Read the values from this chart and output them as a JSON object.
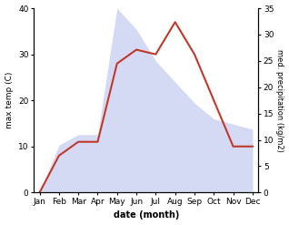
{
  "months": [
    "Jan",
    "Feb",
    "Mar",
    "Apr",
    "May",
    "Jun",
    "Jul",
    "Aug",
    "Sep",
    "Oct",
    "Nov",
    "Dec"
  ],
  "temperature": [
    0,
    8,
    11,
    11,
    28,
    31,
    30,
    37,
    30,
    20,
    10,
    10
  ],
  "precipitation": [
    0,
    9,
    11,
    11,
    35,
    31,
    25,
    21,
    17,
    14,
    13,
    12
  ],
  "temp_color": "#c0392b",
  "precip_fill_color": "#b3bcec",
  "xlabel": "date (month)",
  "ylabel_left": "max temp (C)",
  "ylabel_right": "med. precipitation (kg/m2)",
  "ylim_left": [
    0,
    40
  ],
  "ylim_right": [
    0,
    35
  ],
  "yticks_left": [
    0,
    10,
    20,
    30,
    40
  ],
  "yticks_right": [
    0,
    5,
    10,
    15,
    20,
    25,
    30,
    35
  ],
  "background_color": "#ffffff",
  "temp_linewidth": 1.5,
  "fill_alpha": 0.55,
  "figsize": [
    3.18,
    2.47
  ],
  "dpi": 100
}
